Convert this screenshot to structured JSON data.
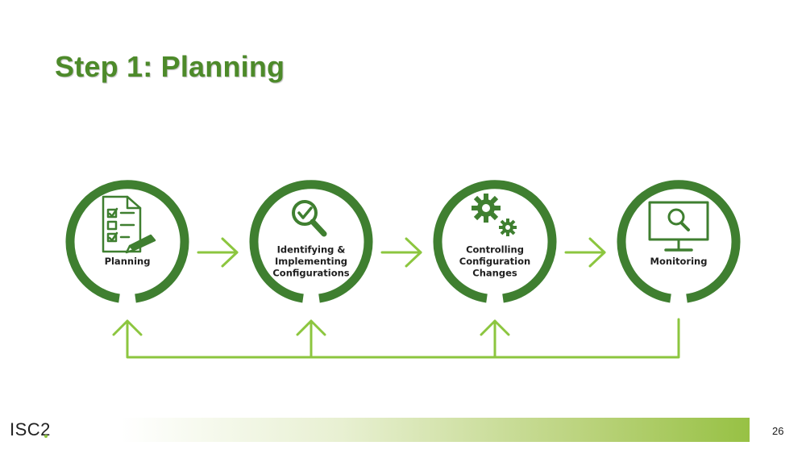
{
  "slide": {
    "title": "Step 1: Planning",
    "page_number": "26",
    "logo_text": "ISC2"
  },
  "steps": [
    {
      "label_lines": [
        "Planning"
      ],
      "icon": "checklist-icon"
    },
    {
      "label_lines": [
        "Identifying &",
        "Implementing",
        "Configurations"
      ],
      "icon": "magnifier-check-icon"
    },
    {
      "label_lines": [
        "Controlling",
        "Configuration",
        "Changes"
      ],
      "icon": "gears-icon"
    },
    {
      "label_lines": [
        "Monitoring"
      ],
      "icon": "monitor-search-icon"
    }
  ],
  "colors": {
    "title": "#4d8a2a",
    "ring": "#3f7f30",
    "arrow": "#8cc63f",
    "footer_gradient_end": "#97c144"
  }
}
